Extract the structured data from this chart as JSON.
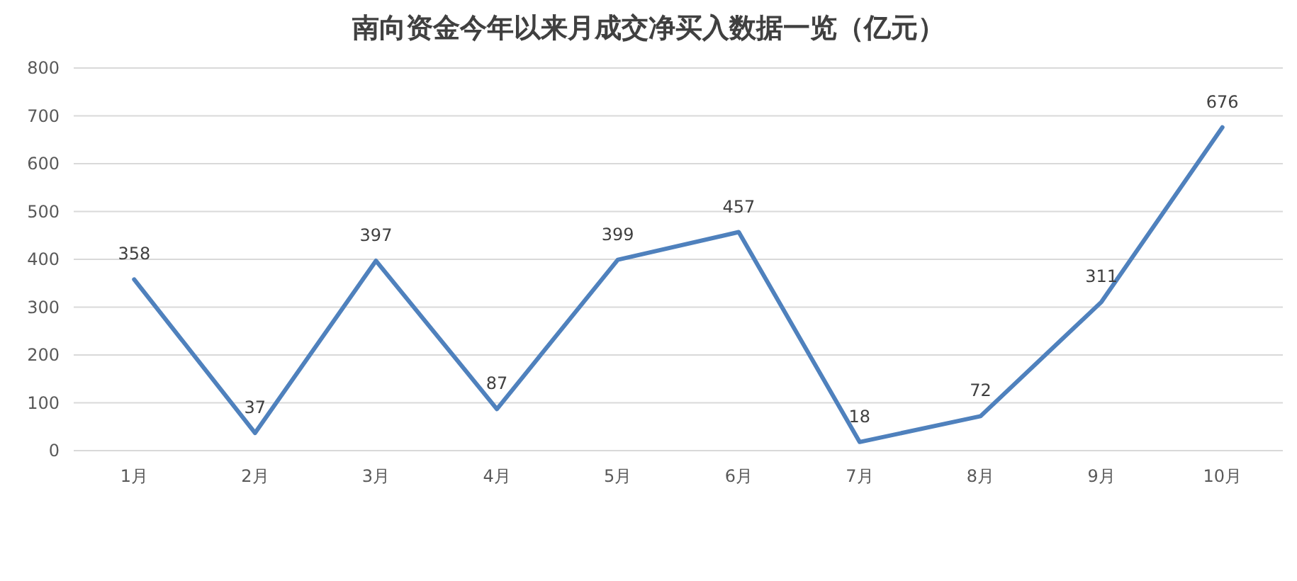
{
  "chart_data": {
    "type": "line",
    "title": "南向资金今年以来月成交净买入数据一览（亿元）",
    "categories": [
      "1月",
      "2月",
      "3月",
      "4月",
      "5月",
      "6月",
      "7月",
      "8月",
      "9月",
      "10月"
    ],
    "series": [
      {
        "color": "#4f81bd",
        "values": [
          358,
          37,
          397,
          87,
          399,
          457,
          18,
          72,
          311,
          676
        ]
      }
    ],
    "ylim": [
      0,
      800
    ],
    "yticks": [
      0,
      100,
      200,
      300,
      400,
      500,
      600,
      700,
      800
    ],
    "grid": "y",
    "data_labels": true,
    "marker": "none",
    "line_style": "solid"
  }
}
